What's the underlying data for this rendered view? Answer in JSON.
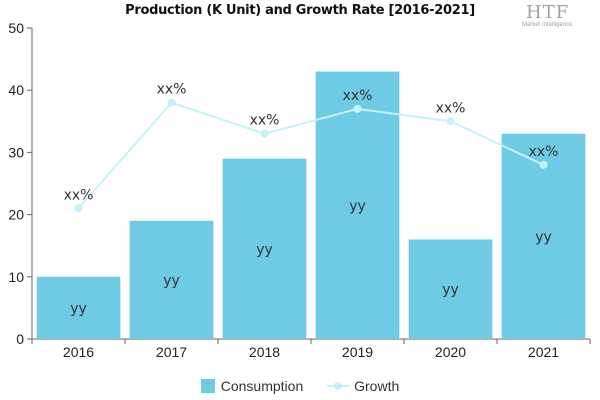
{
  "chart_data": {
    "type": "bar",
    "title": "Production (K Unit) and Growth Rate [2016-2021]",
    "categories": [
      "2016",
      "2017",
      "2018",
      "2019",
      "2020",
      "2021"
    ],
    "ylim": [
      0,
      50
    ],
    "yticks": [
      0,
      10,
      20,
      30,
      40,
      50
    ],
    "grid": false,
    "legend_position": "bottom",
    "series": [
      {
        "name": "Consumption",
        "type": "bar",
        "color": "#6ecbe3",
        "values": [
          10,
          19,
          29,
          43,
          16,
          33
        ],
        "labels": [
          "yy",
          "yy",
          "yy",
          "yy",
          "yy",
          "yy"
        ]
      },
      {
        "name": "Growth",
        "type": "line",
        "color": "#c6f1f8",
        "values": [
          21,
          38,
          33,
          37,
          35,
          28
        ],
        "labels": [
          "xx%",
          "xx%",
          "xx%",
          "xx%",
          "xx%",
          "xx%"
        ]
      }
    ]
  },
  "logo": {
    "text": "HTF",
    "subtext": "Market Intelligence"
  }
}
